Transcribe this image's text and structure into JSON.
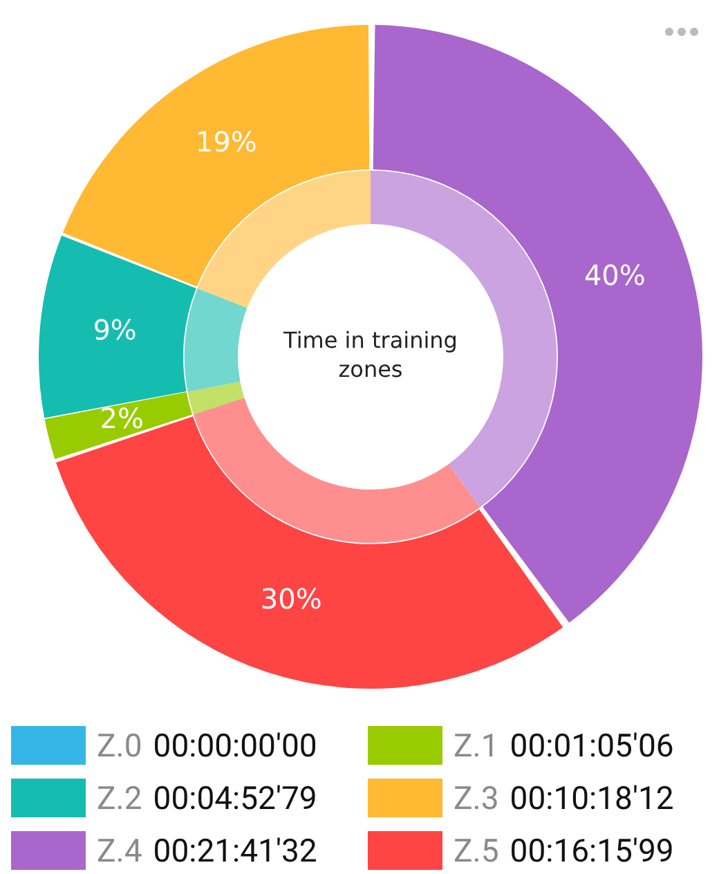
{
  "chart_data": {
    "type": "donut",
    "title": "Time in training zones",
    "categories": [
      "Z.0 00:00:00'00",
      "Z.1 00:01:05'06",
      "Z.2 00:04:52'79",
      "Z.3 00:10:18'12",
      "Z.4 00:21:41'32",
      "Z.5 00:16:15'99"
    ],
    "series": [
      {
        "values": [
          0,
          2,
          9,
          19,
          40,
          30
        ],
        "colors": [
          "#35b6e6",
          "#99cc00",
          "#14bdaf",
          "#ffb933",
          "#a966cc",
          "#ff4444"
        ],
        "value_labels": [
          null,
          "2%",
          "9%",
          "19%",
          "40%",
          "30%"
        ]
      },
      {
        "values": [
          0,
          2,
          9,
          19,
          40,
          30
        ],
        "colors": [
          "#86d3f0",
          "#c2e066",
          "#72d7cf",
          "#ffd585",
          "#cba3e0",
          "#ff8f8f"
        ]
      }
    ],
    "legend": "bottom"
  }
}
